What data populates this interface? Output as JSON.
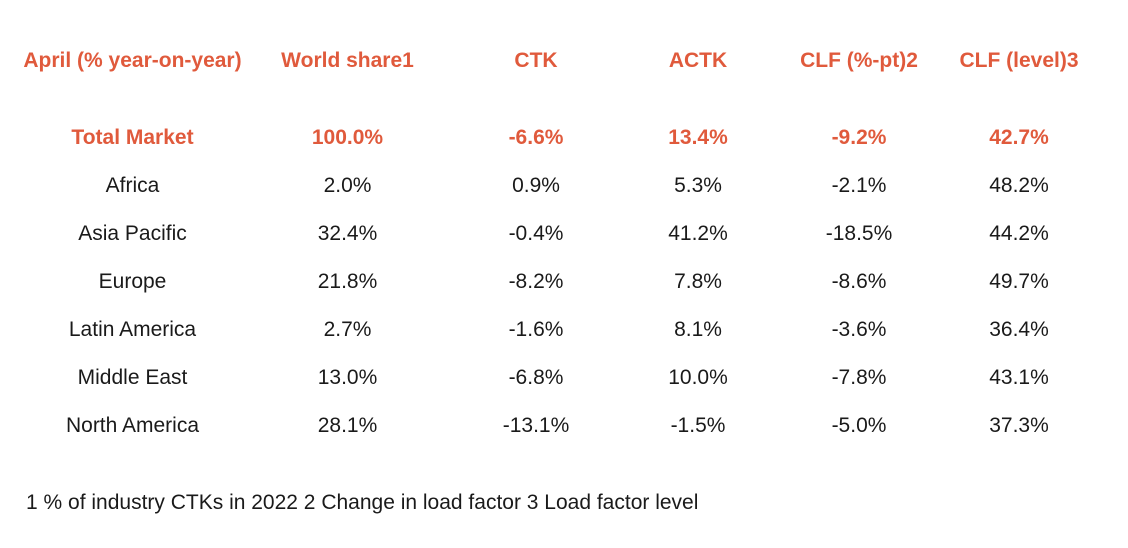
{
  "header": {
    "col0": "April (% year-on-year)",
    "col1": "World share1",
    "col2": "CTK",
    "col3": "ACTK",
    "col4": "CLF (%-pt)2",
    "col5": "CLF (level)3"
  },
  "colors": {
    "accent": "#e05a3c",
    "text": "#1a1a1a"
  },
  "rows": [
    {
      "region": "Total Market",
      "world_share": "100.0%",
      "ctk": "-6.6%",
      "actk": "13.4%",
      "clf_pt": "-9.2%",
      "clf_level": "42.7%"
    },
    {
      "region": "Africa",
      "world_share": "2.0%",
      "ctk": "0.9%",
      "actk": "5.3%",
      "clf_pt": "-2.1%",
      "clf_level": "48.2%"
    },
    {
      "region": "Asia Pacific",
      "world_share": "32.4%",
      "ctk": "-0.4%",
      "actk": "41.2%",
      "clf_pt": "-18.5%",
      "clf_level": "44.2%"
    },
    {
      "region": "Europe",
      "world_share": "21.8%",
      "ctk": "-8.2%",
      "actk": "7.8%",
      "clf_pt": "-8.6%",
      "clf_level": "49.7%"
    },
    {
      "region": "Latin America",
      "world_share": "2.7%",
      "ctk": "-1.6%",
      "actk": "8.1%",
      "clf_pt": "-3.6%",
      "clf_level": "36.4%"
    },
    {
      "region": "Middle East",
      "world_share": "13.0%",
      "ctk": "-6.8%",
      "actk": "10.0%",
      "clf_pt": "-7.8%",
      "clf_level": "43.1%"
    },
    {
      "region": "North America",
      "world_share": "28.1%",
      "ctk": "-13.1%",
      "actk": "-1.5%",
      "clf_pt": "-5.0%",
      "clf_level": "37.3%"
    }
  ],
  "footnote": "1 % of industry CTKs in 2022  2 Change in load factor  3 Load factor level"
}
